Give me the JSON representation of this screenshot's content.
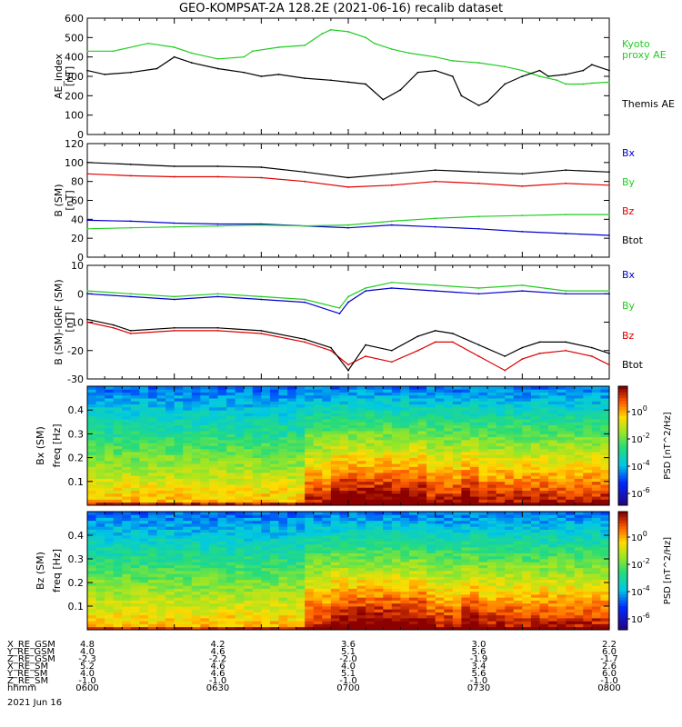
{
  "title": "GEO-KOMPSAT-2A 128.2E (2021-06-16) recalib dataset",
  "colors": {
    "black": "#000000",
    "green": "#22cc22",
    "red": "#dd0000",
    "blue": "#0000cc"
  },
  "chart_data": [
    {
      "type": "line",
      "panel": "ae",
      "ylabel": "AE_index [nT]",
      "ylim": [
        0,
        600
      ],
      "yticks": [
        "0",
        "100",
        "200",
        "300",
        "400",
        "500",
        "600"
      ],
      "series": [
        {
          "name": "Kyoto proxy AE",
          "color": "green",
          "x": [
            0,
            3,
            7,
            10,
            12,
            15,
            18,
            19,
            22,
            25,
            27,
            28,
            30,
            32,
            33,
            35,
            37,
            40,
            42,
            45,
            48,
            50,
            52,
            54,
            55,
            57,
            58,
            60
          ],
          "y": [
            430,
            430,
            470,
            450,
            420,
            390,
            400,
            430,
            450,
            460,
            520,
            540,
            530,
            500,
            470,
            440,
            420,
            400,
            380,
            370,
            350,
            330,
            300,
            280,
            260,
            260,
            265,
            270
          ]
        },
        {
          "name": "Themis AE",
          "color": "black",
          "x": [
            0,
            2,
            5,
            8,
            10,
            12,
            15,
            18,
            20,
            22,
            25,
            28,
            30,
            32,
            34,
            36,
            38,
            40,
            42,
            43,
            45,
            46,
            48,
            50,
            52,
            53,
            55,
            57,
            58,
            60
          ],
          "y": [
            330,
            310,
            320,
            340,
            400,
            370,
            340,
            320,
            300,
            310,
            290,
            280,
            270,
            260,
            180,
            230,
            320,
            330,
            300,
            200,
            150,
            170,
            260,
            300,
            330,
            300,
            310,
            330,
            360,
            330
          ]
        }
      ]
    },
    {
      "type": "line",
      "panel": "b",
      "ylabel": "B (SM) [nT]",
      "ylim": [
        0,
        120
      ],
      "yticks": [
        "0",
        "20",
        "40",
        "60",
        "80",
        "100",
        "120"
      ],
      "series": [
        {
          "name": "Bx",
          "color": "blue",
          "x": [
            0,
            5,
            10,
            15,
            20,
            25,
            30,
            35,
            40,
            45,
            50,
            55,
            60
          ],
          "y": [
            39,
            38,
            36,
            35,
            35,
            33,
            31,
            34,
            32,
            30,
            27,
            25,
            23
          ]
        },
        {
          "name": "By",
          "color": "green",
          "x": [
            0,
            5,
            10,
            15,
            20,
            25,
            30,
            35,
            40,
            45,
            50,
            55,
            60
          ],
          "y": [
            30,
            31,
            32,
            33,
            34,
            33,
            34,
            38,
            41,
            43,
            44,
            45,
            45
          ]
        },
        {
          "name": "Bz",
          "color": "red",
          "x": [
            0,
            5,
            10,
            15,
            20,
            25,
            30,
            35,
            40,
            45,
            50,
            55,
            60
          ],
          "y": [
            88,
            86,
            85,
            85,
            84,
            80,
            74,
            76,
            80,
            78,
            75,
            78,
            76
          ]
        },
        {
          "name": "Btot",
          "color": "black",
          "x": [
            0,
            5,
            10,
            15,
            20,
            25,
            30,
            35,
            40,
            45,
            50,
            55,
            60
          ],
          "y": [
            100,
            98,
            96,
            96,
            95,
            90,
            84,
            88,
            92,
            90,
            88,
            92,
            90
          ]
        }
      ]
    },
    {
      "type": "line",
      "panel": "db",
      "ylabel": "B (SM)-IGRF (SM) [nT]",
      "ylim": [
        -30,
        10
      ],
      "yticks": [
        "-30",
        "-20",
        "-10",
        "0",
        "10"
      ],
      "series": [
        {
          "name": "Bx",
          "color": "blue",
          "x": [
            0,
            5,
            10,
            15,
            20,
            25,
            29,
            30,
            32,
            35,
            40,
            45,
            50,
            55,
            60
          ],
          "y": [
            0,
            -1,
            -2,
            -1,
            -2,
            -3,
            -7,
            -3,
            1,
            2,
            1,
            0,
            1,
            0,
            0
          ]
        },
        {
          "name": "By",
          "color": "green",
          "x": [
            0,
            5,
            10,
            15,
            20,
            25,
            29,
            30,
            32,
            35,
            40,
            45,
            50,
            55,
            60
          ],
          "y": [
            1,
            0,
            -1,
            0,
            -1,
            -2,
            -5,
            -1,
            2,
            4,
            3,
            2,
            3,
            1,
            1
          ]
        },
        {
          "name": "Bz",
          "color": "red",
          "x": [
            0,
            3,
            5,
            10,
            15,
            20,
            25,
            28,
            30,
            32,
            35,
            38,
            40,
            42,
            45,
            48,
            50,
            52,
            55,
            58,
            60
          ],
          "y": [
            -10,
            -12,
            -14,
            -13,
            -13,
            -14,
            -17,
            -20,
            -25,
            -22,
            -24,
            -20,
            -17,
            -17,
            -22,
            -27,
            -23,
            -21,
            -20,
            -22,
            -25
          ]
        },
        {
          "name": "Btot",
          "color": "black",
          "x": [
            0,
            3,
            5,
            10,
            15,
            20,
            25,
            28,
            30,
            32,
            35,
            38,
            40,
            42,
            45,
            48,
            50,
            52,
            55,
            58,
            60
          ],
          "y": [
            -9,
            -11,
            -13,
            -12,
            -12,
            -13,
            -16,
            -19,
            -27,
            -18,
            -20,
            -15,
            -13,
            -14,
            -18,
            -22,
            -19,
            -17,
            -17,
            -19,
            -21
          ]
        }
      ]
    },
    {
      "type": "heatmap",
      "panel": "bx",
      "ylabel": "Bx (SM) freq [Hz]",
      "ylim": [
        0,
        0.5
      ],
      "yticks": [
        "0.1",
        "0.2",
        "0.3",
        "0.4"
      ],
      "colorbar": {
        "label": "PSD [nT^2/Hz]",
        "ticks": [
          "10^0",
          "10^-2",
          "10^-4",
          "10^-6"
        ]
      }
    },
    {
      "type": "heatmap",
      "panel": "bz",
      "ylabel": "Bz (SM) freq [Hz]",
      "ylim": [
        0,
        0.5
      ],
      "yticks": [
        "0.1",
        "0.2",
        "0.3",
        "0.4"
      ],
      "colorbar": {
        "label": "PSD [nT^2/Hz]",
        "ticks": [
          "10^0",
          "10^-2",
          "10^-4",
          "10^-6"
        ]
      }
    }
  ],
  "orbit": {
    "row_labels": [
      "X_RE_GSM",
      "Y_RE_GSM",
      "Z_RE_GSM",
      "X_RE_SM",
      "Y_RE_SM",
      "Z_RE_SM",
      "hhmm"
    ],
    "columns": [
      [
        "4.8",
        "4.0",
        "-2.3",
        "5.2",
        "4.0",
        "-1.0",
        "0600"
      ],
      [
        "4.2",
        "4.6",
        "-2.2",
        "4.6",
        "4.6",
        "-1.0",
        "0630"
      ],
      [
        "3.6",
        "5.1",
        "-2.0",
        "4.0",
        "5.1",
        "-1.0",
        "0700"
      ],
      [
        "3.0",
        "5.6",
        "-1.9",
        "3.4",
        "5.6",
        "-1.0",
        "0730"
      ],
      [
        "2.2",
        "6.0",
        "-1.7",
        "2.6",
        "6.0",
        "-1.0",
        "0800"
      ]
    ],
    "date": "2021 Jun 16"
  }
}
